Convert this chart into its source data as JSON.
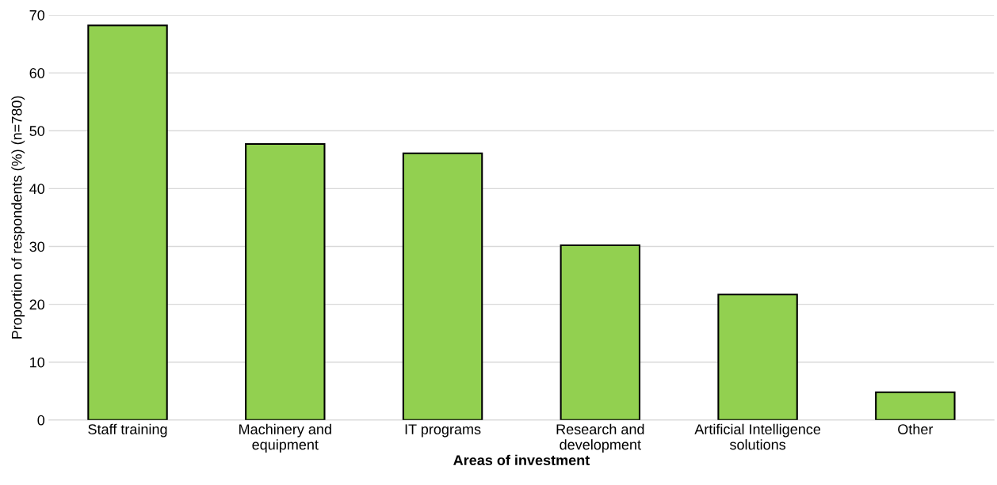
{
  "chart_data": {
    "type": "bar",
    "xlabel": "Areas of investment",
    "ylabel": "Proportion of respondents (%) (n=780)",
    "categories": [
      "Staff training",
      "Machinery and\nequipment",
      "IT programs",
      "Research and\ndevelopment",
      "Artificial Intelligence\nsolutions",
      "Other"
    ],
    "values": [
      68.2,
      47.7,
      46.1,
      30.2,
      21.7,
      4.8
    ],
    "color": "#92d050",
    "ylim": [
      0,
      70
    ],
    "yticks": [
      0,
      10,
      20,
      30,
      40,
      50,
      60,
      70
    ],
    "grid": "y",
    "legend": false
  }
}
